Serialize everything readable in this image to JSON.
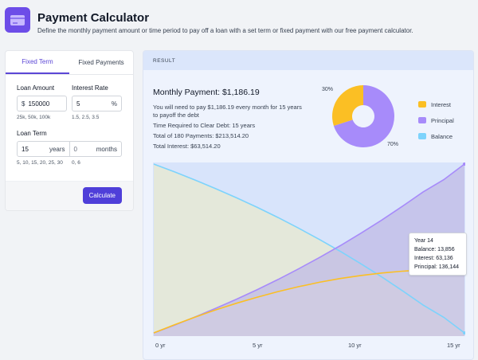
{
  "header": {
    "title": "Payment Calculator",
    "subtitle": "Define the monthly payment amount or time period to pay off a loan with a set term or fixed payment with our free payment calculator."
  },
  "tabs": [
    {
      "label": "Fixed Term",
      "active": true
    },
    {
      "label": "Fixed Payments",
      "active": false
    }
  ],
  "form": {
    "loan_amount": {
      "label": "Loan Amount",
      "prefix": "$",
      "value": "150000",
      "hint": "25k, 50k, 100k"
    },
    "interest_rate": {
      "label": "Interest Rate",
      "value": "5",
      "suffix": "%",
      "hint": "1.5, 2.5, 3.5"
    },
    "loan_term": {
      "label": "Loan Term",
      "years_value": "15",
      "years_suffix": "years",
      "months_placeholder": "0",
      "months_suffix": "months",
      "hint": "5, 10, 15, 20, 25, 30",
      "hint2": "0, 6"
    },
    "calculate_label": "Calculate"
  },
  "result": {
    "header": "RESULT",
    "monthly_payment": "Monthly Payment: $1,186.19",
    "line1": "You will need to pay $1,186.19 every month for 15 years to payoff the debt",
    "line2": "Time Required to Clear Debt: 15 years",
    "line3": "Total of 180 Payments: $213,514.20",
    "line4": "Total Interest: $63,514.20"
  },
  "donut": {
    "interest_pct": "30%",
    "principal_pct": "70%",
    "interest_fraction": 0.3
  },
  "legend": [
    {
      "label": "Interest",
      "color": "#fbbf24"
    },
    {
      "label": "Principal",
      "color": "#a78bfa"
    },
    {
      "label": "Balance",
      "color": "#7dd3fc"
    }
  ],
  "chart_data": {
    "type": "area",
    "x_labels": [
      "0 yr",
      "5 yr",
      "10 yr",
      "15 yr"
    ],
    "x": [
      0,
      1,
      2,
      3,
      4,
      5,
      6,
      7,
      8,
      9,
      10,
      11,
      12,
      13,
      14,
      15
    ],
    "ylim": [
      0,
      150000
    ],
    "series": [
      {
        "name": "Interest",
        "color": "#fbbf24",
        "values": [
          0,
          7300,
          14100,
          20500,
          26400,
          31800,
          36700,
          41100,
          45000,
          48300,
          51000,
          53200,
          54800,
          55800,
          63136,
          63514
        ]
      },
      {
        "name": "Principal",
        "color": "#a78bfa",
        "values": [
          0,
          6900,
          14200,
          21900,
          30000,
          38500,
          47500,
          57000,
          67000,
          77500,
          88600,
          100200,
          112400,
          125200,
          136144,
          150000
        ]
      },
      {
        "name": "Balance",
        "color": "#7dd3fc",
        "values": [
          150000,
          143100,
          135800,
          128100,
          120000,
          111500,
          102500,
          93000,
          83000,
          72500,
          61400,
          49800,
          37600,
          24800,
          13856,
          0
        ]
      }
    ],
    "tooltip": {
      "title": "Year 14",
      "balance": "Balance: 13,856",
      "interest": "Interest: 63,136",
      "principal": "Principal: 136,144"
    }
  }
}
